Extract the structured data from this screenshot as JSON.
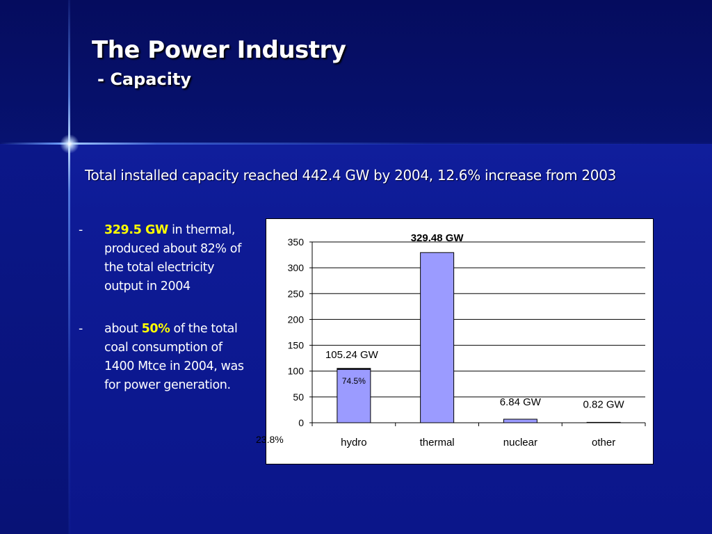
{
  "slide": {
    "title": "The Power Industry",
    "subtitle": "- Capacity",
    "summary": "Total installed capacity reached 442.4 GW by 2004, 12.6% increase from 2003",
    "bullets": [
      {
        "dash": "-",
        "highlight": "329.5 GW",
        "text": " in thermal, produced about 82% of the total electricity output in 2004"
      },
      {
        "dash": "-",
        "prefix": "about ",
        "highlight": "50%",
        "text": " of the total coal consumption of 1400 Mtce in 2004, was for power generation."
      }
    ]
  },
  "colors": {
    "bar_fill": "#9b9bff",
    "highlight": "#ffff00",
    "title_text": "#ffffff"
  },
  "chart_data": {
    "type": "bar",
    "title": "",
    "xlabel": "",
    "ylabel": "",
    "categories": [
      "hydro",
      "thermal",
      "nuclear",
      "other"
    ],
    "values": [
      105.24,
      329.48,
      6.84,
      0.82
    ],
    "data_labels": [
      "105.24 GW",
      "329.48 GW",
      "6.84 GW",
      "0.82 GW"
    ],
    "ylim": [
      0,
      350
    ],
    "yticks": [
      0,
      50,
      100,
      150,
      200,
      250,
      300,
      350
    ],
    "grid": true,
    "legend": false,
    "annotations": [
      {
        "text": "74.5%",
        "category": "hydro"
      },
      {
        "text": "23.8%",
        "category": "hydro"
      }
    ]
  }
}
